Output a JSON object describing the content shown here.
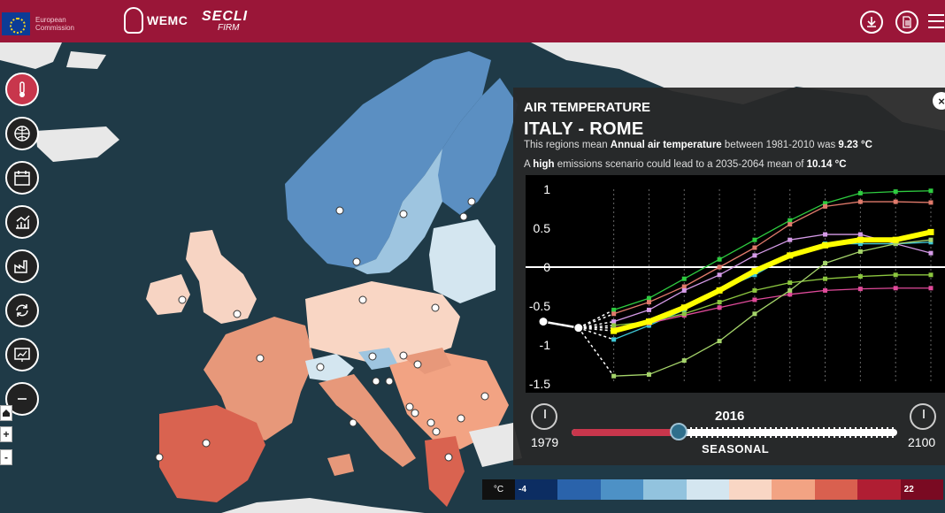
{
  "header": {
    "eu_logo_text": "European Commission",
    "wemc_label": "WEMC",
    "secli_label": "SECLI",
    "secli_sub": "FIRM",
    "download_icon": "download-icon",
    "document_icon": "document-icon",
    "menu_icon": "hamburger-menu-icon"
  },
  "toolbar": {
    "items": [
      {
        "name": "temperature-tool",
        "icon": "thermometer-icon",
        "active": true
      },
      {
        "name": "globe-tool",
        "icon": "globe-icon",
        "active": false
      },
      {
        "name": "calendar-tool",
        "icon": "calendar-icon",
        "active": false
      },
      {
        "name": "chart-tool",
        "icon": "bar-chart-icon",
        "active": false
      },
      {
        "name": "factory-tool",
        "icon": "factory-icon",
        "active": false
      },
      {
        "name": "refresh-tool",
        "icon": "cycle-icon",
        "active": false
      },
      {
        "name": "report-tool",
        "icon": "presentation-icon",
        "active": false
      },
      {
        "name": "minus-tool",
        "icon": "minus-icon",
        "active": false
      }
    ],
    "zoom_in": "+",
    "zoom_out": "-"
  },
  "panel": {
    "title": "AIR TEMPERATURE",
    "location": "ITALY - ROME",
    "line1_pre": "This regions mean ",
    "line1_bold": "Annual air temperature",
    "line1_mid": " between 1981-2010 was ",
    "line1_value": "9.23 °C",
    "line2_pre": "A ",
    "line2_bold": "high",
    "line2_mid": " emissions scenario could lead to a 2035-2064 mean of ",
    "line2_value": "10.14 °C",
    "close_label": "×"
  },
  "timeline": {
    "year": "2016",
    "start": "1979",
    "end": "2100",
    "mode": "SEASONAL",
    "progress": 0.33
  },
  "legend": {
    "unit": "°C",
    "min": "-4",
    "max": "22",
    "colors": [
      "#0c2d62",
      "#2a63ab",
      "#4d91c6",
      "#92c3de",
      "#d4e6f0",
      "#f9d6c4",
      "#f2a383",
      "#d9604f",
      "#b01e33",
      "#7a0a22"
    ]
  },
  "chart_data": {
    "type": "line",
    "y_ticks": [
      "1",
      "0.5",
      "0",
      "-0.5",
      "-1",
      "-1.5"
    ],
    "ylim": [
      -1.5,
      1
    ],
    "grid": true,
    "x_points": 12,
    "series": [
      {
        "color": "#2ecc40",
        "values": [
          -0.7,
          -0.78,
          -0.55,
          -0.4,
          -0.15,
          0.1,
          0.35,
          0.6,
          0.82,
          0.95,
          0.97,
          0.98
        ]
      },
      {
        "color": "#e07a6b",
        "values": [
          -0.7,
          -0.78,
          -0.6,
          -0.45,
          -0.25,
          0.0,
          0.25,
          0.55,
          0.78,
          0.84,
          0.84,
          0.83
        ]
      },
      {
        "color": "#d59be8",
        "values": [
          -0.7,
          -0.78,
          -0.7,
          -0.55,
          -0.3,
          -0.1,
          0.15,
          0.35,
          0.42,
          0.42,
          0.3,
          0.18
        ]
      },
      {
        "color": "#3ec7d6",
        "values": [
          -0.7,
          -0.78,
          -0.93,
          -0.75,
          -0.55,
          -0.3,
          -0.1,
          0.15,
          0.3,
          0.3,
          0.3,
          0.32
        ]
      },
      {
        "color": "#e04a9a",
        "values": [
          -0.7,
          -0.78,
          -0.78,
          -0.72,
          -0.62,
          -0.52,
          -0.42,
          -0.35,
          -0.3,
          -0.28,
          -0.27,
          -0.27
        ]
      },
      {
        "color": "#8cc63f",
        "values": [
          -0.7,
          -0.78,
          -0.75,
          -0.7,
          -0.6,
          -0.45,
          -0.3,
          -0.2,
          -0.15,
          -0.12,
          -0.1,
          -0.1
        ]
      },
      {
        "color": "#a5d46a",
        "values": [
          -0.7,
          -0.78,
          -1.4,
          -1.38,
          -1.2,
          -0.95,
          -0.6,
          -0.3,
          0.05,
          0.2,
          0.3,
          0.35
        ]
      },
      {
        "color": "#ffff00",
        "values": [
          -0.7,
          -0.78,
          -0.82,
          -0.7,
          -0.52,
          -0.3,
          -0.05,
          0.15,
          0.28,
          0.35,
          0.35,
          0.45
        ]
      }
    ]
  }
}
